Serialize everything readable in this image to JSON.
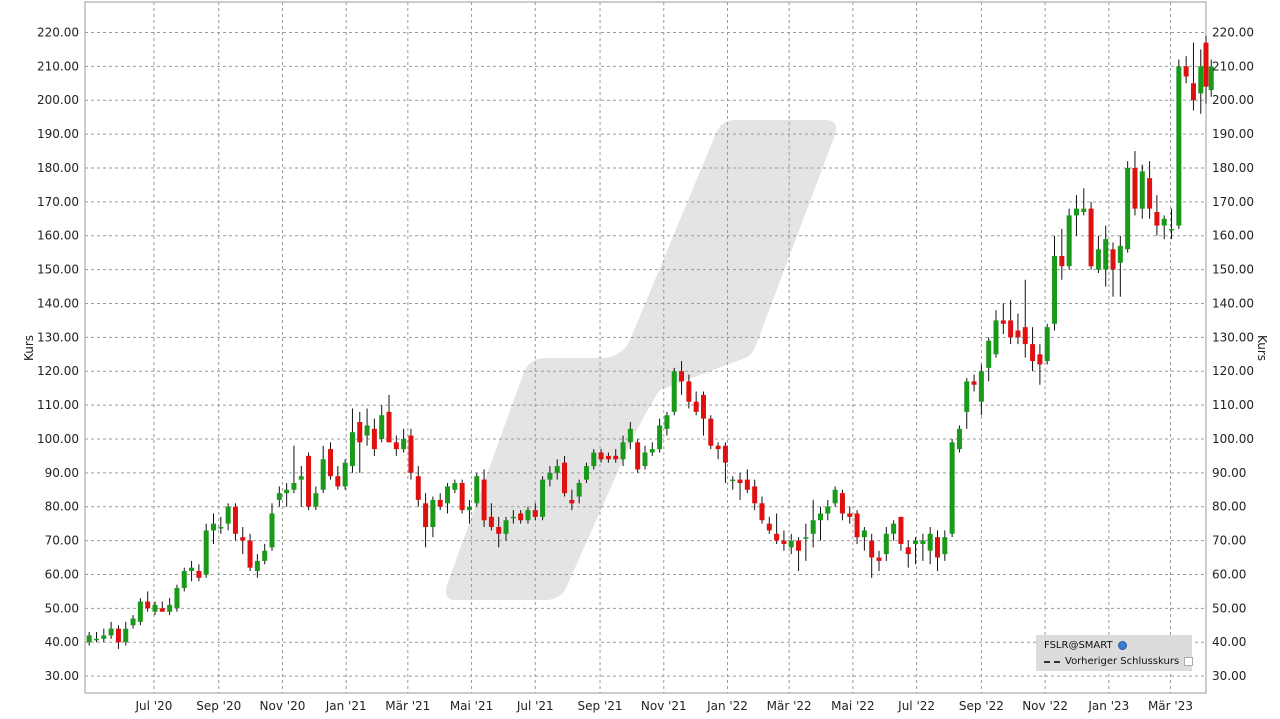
{
  "chart_data": {
    "type": "candlestick",
    "ylabel": "Kurs",
    "ylim": [
      25,
      229
    ],
    "y_ticks": [
      "30.00",
      "40.00",
      "50.00",
      "60.00",
      "70.00",
      "80.00",
      "90.00",
      "100.00",
      "110.00",
      "120.00",
      "130.00",
      "140.00",
      "150.00",
      "160.00",
      "170.00",
      "180.00",
      "190.00",
      "200.00",
      "210.00",
      "220.00"
    ],
    "x_ticks": [
      "Jul '20",
      "Sep '20",
      "Nov '20",
      "Jan '21",
      "Mär '21",
      "Mai '21",
      "Jul '21",
      "Sep '21",
      "Nov '21",
      "Jan '22",
      "Mär '22",
      "Mai '22",
      "Jul '22",
      "Sep '22",
      "Nov '22",
      "Jan '23",
      "Mär '23"
    ],
    "x_tick_dates": [
      "2020-07-01",
      "2020-09-01",
      "2020-11-01",
      "2021-01-01",
      "2021-03-01",
      "2021-05-01",
      "2021-07-01",
      "2021-09-01",
      "2021-11-01",
      "2022-01-01",
      "2022-03-01",
      "2022-05-01",
      "2022-07-01",
      "2022-09-01",
      "2022-11-01",
      "2023-01-01",
      "2023-03-01"
    ],
    "xlim": [
      "2020-04-26",
      "2023-04-04"
    ],
    "grid": true,
    "up_color": "#1a9a1a",
    "down_color": "#e01010",
    "legend_position": "bottom-right",
    "legend": [
      "FSLR@SMART",
      "Vorheriger Schlusskurs"
    ],
    "candles": [
      {
        "d": "2020-04-30",
        "o": 40,
        "h": 43,
        "l": 39,
        "c": 42
      },
      {
        "d": "2020-05-07",
        "o": 41,
        "h": 43,
        "l": 40,
        "c": 41
      },
      {
        "d": "2020-05-14",
        "o": 41,
        "h": 44,
        "l": 40,
        "c": 42
      },
      {
        "d": "2020-05-21",
        "o": 42,
        "h": 46,
        "l": 41,
        "c": 44
      },
      {
        "d": "2020-05-28",
        "o": 44,
        "h": 45,
        "l": 38,
        "c": 40
      },
      {
        "d": "2020-06-04",
        "o": 40,
        "h": 46,
        "l": 39,
        "c": 44
      },
      {
        "d": "2020-06-11",
        "o": 45,
        "h": 48,
        "l": 44,
        "c": 47
      },
      {
        "d": "2020-06-18",
        "o": 46,
        "h": 53,
        "l": 45,
        "c": 52
      },
      {
        "d": "2020-06-25",
        "o": 52,
        "h": 55,
        "l": 49,
        "c": 50
      },
      {
        "d": "2020-07-02",
        "o": 49,
        "h": 52,
        "l": 48,
        "c": 51
      },
      {
        "d": "2020-07-09",
        "o": 50,
        "h": 52,
        "l": 49,
        "c": 49
      },
      {
        "d": "2020-07-16",
        "o": 49,
        "h": 53,
        "l": 48,
        "c": 51
      },
      {
        "d": "2020-07-23",
        "o": 50,
        "h": 57,
        "l": 49,
        "c": 56
      },
      {
        "d": "2020-07-30",
        "o": 56,
        "h": 62,
        "l": 55,
        "c": 61
      },
      {
        "d": "2020-08-06",
        "o": 61,
        "h": 64,
        "l": 58,
        "c": 62
      },
      {
        "d": "2020-08-13",
        "o": 61,
        "h": 63,
        "l": 58,
        "c": 59
      },
      {
        "d": "2020-08-20",
        "o": 60,
        "h": 75,
        "l": 59,
        "c": 73
      },
      {
        "d": "2020-08-27",
        "o": 73,
        "h": 78,
        "l": 69,
        "c": 75
      },
      {
        "d": "2020-09-03",
        "o": 74,
        "h": 77,
        "l": 72,
        "c": 74
      },
      {
        "d": "2020-09-10",
        "o": 75,
        "h": 81,
        "l": 73,
        "c": 80
      },
      {
        "d": "2020-09-17",
        "o": 80,
        "h": 81,
        "l": 70,
        "c": 72
      },
      {
        "d": "2020-09-24",
        "o": 71,
        "h": 74,
        "l": 66,
        "c": 70
      },
      {
        "d": "2020-10-01",
        "o": 70,
        "h": 72,
        "l": 61,
        "c": 62
      },
      {
        "d": "2020-10-08",
        "o": 61,
        "h": 66,
        "l": 59,
        "c": 64
      },
      {
        "d": "2020-10-15",
        "o": 64,
        "h": 69,
        "l": 63,
        "c": 67
      },
      {
        "d": "2020-10-22",
        "o": 68,
        "h": 81,
        "l": 67,
        "c": 78
      },
      {
        "d": "2020-10-29",
        "o": 82,
        "h": 86,
        "l": 80,
        "c": 84
      },
      {
        "d": "2020-11-05",
        "o": 84,
        "h": 87,
        "l": 80,
        "c": 85
      },
      {
        "d": "2020-11-12",
        "o": 85,
        "h": 98,
        "l": 84,
        "c": 87
      },
      {
        "d": "2020-11-19",
        "o": 88,
        "h": 92,
        "l": 80,
        "c": 89
      },
      {
        "d": "2020-11-26",
        "o": 95,
        "h": 96,
        "l": 79,
        "c": 80
      },
      {
        "d": "2020-12-03",
        "o": 80,
        "h": 86,
        "l": 79,
        "c": 84
      },
      {
        "d": "2020-12-10",
        "o": 85,
        "h": 98,
        "l": 84,
        "c": 94
      },
      {
        "d": "2020-12-17",
        "o": 97,
        "h": 99,
        "l": 88,
        "c": 89
      },
      {
        "d": "2020-12-24",
        "o": 89,
        "h": 92,
        "l": 85,
        "c": 86
      },
      {
        "d": "2020-12-31",
        "o": 86,
        "h": 94,
        "l": 85,
        "c": 93
      },
      {
        "d": "2021-01-07",
        "o": 92,
        "h": 109,
        "l": 90,
        "c": 102
      },
      {
        "d": "2021-01-14",
        "o": 105,
        "h": 108,
        "l": 90,
        "c": 99
      },
      {
        "d": "2021-01-21",
        "o": 101,
        "h": 109,
        "l": 98,
        "c": 104
      },
      {
        "d": "2021-01-28",
        "o": 103,
        "h": 106,
        "l": 95,
        "c": 97
      },
      {
        "d": "2021-02-04",
        "o": 100,
        "h": 110,
        "l": 99,
        "c": 107
      },
      {
        "d": "2021-02-11",
        "o": 108,
        "h": 113,
        "l": 99,
        "c": 99
      },
      {
        "d": "2021-02-18",
        "o": 99,
        "h": 101,
        "l": 95,
        "c": 97
      },
      {
        "d": "2021-02-25",
        "o": 97,
        "h": 103,
        "l": 96,
        "c": 100
      },
      {
        "d": "2021-03-04",
        "o": 101,
        "h": 103,
        "l": 88,
        "c": 90
      },
      {
        "d": "2021-03-11",
        "o": 89,
        "h": 92,
        "l": 80,
        "c": 82
      },
      {
        "d": "2021-03-18",
        "o": 81,
        "h": 84,
        "l": 68,
        "c": 74
      },
      {
        "d": "2021-03-25",
        "o": 74,
        "h": 83,
        "l": 71,
        "c": 82
      },
      {
        "d": "2021-04-01",
        "o": 82,
        "h": 84,
        "l": 79,
        "c": 80
      },
      {
        "d": "2021-04-08",
        "o": 81,
        "h": 87,
        "l": 78,
        "c": 86
      },
      {
        "d": "2021-04-15",
        "o": 85,
        "h": 88,
        "l": 84,
        "c": 87
      },
      {
        "d": "2021-04-22",
        "o": 87,
        "h": 88,
        "l": 78,
        "c": 79
      },
      {
        "d": "2021-04-29",
        "o": 79,
        "h": 82,
        "l": 75,
        "c": 80
      },
      {
        "d": "2021-05-06",
        "o": 81,
        "h": 90,
        "l": 80,
        "c": 89
      },
      {
        "d": "2021-05-13",
        "o": 88,
        "h": 91,
        "l": 74,
        "c": 76
      },
      {
        "d": "2021-05-20",
        "o": 77,
        "h": 81,
        "l": 73,
        "c": 74
      },
      {
        "d": "2021-05-27",
        "o": 74,
        "h": 77,
        "l": 68,
        "c": 72
      },
      {
        "d": "2021-06-03",
        "o": 72,
        "h": 77,
        "l": 70,
        "c": 76
      },
      {
        "d": "2021-06-10",
        "o": 77,
        "h": 79,
        "l": 75,
        "c": 77
      },
      {
        "d": "2021-06-17",
        "o": 78,
        "h": 79,
        "l": 75,
        "c": 76
      },
      {
        "d": "2021-06-24",
        "o": 76,
        "h": 80,
        "l": 75,
        "c": 79
      },
      {
        "d": "2021-07-01",
        "o": 79,
        "h": 81,
        "l": 76,
        "c": 77
      },
      {
        "d": "2021-07-08",
        "o": 77,
        "h": 89,
        "l": 76,
        "c": 88
      },
      {
        "d": "2021-07-15",
        "o": 88,
        "h": 92,
        "l": 86,
        "c": 90
      },
      {
        "d": "2021-07-22",
        "o": 90,
        "h": 94,
        "l": 88,
        "c": 92
      },
      {
        "d": "2021-07-29",
        "o": 93,
        "h": 95,
        "l": 83,
        "c": 84
      },
      {
        "d": "2021-08-05",
        "o": 82,
        "h": 85,
        "l": 79,
        "c": 81
      },
      {
        "d": "2021-08-12",
        "o": 83,
        "h": 88,
        "l": 81,
        "c": 87
      },
      {
        "d": "2021-08-19",
        "o": 88,
        "h": 93,
        "l": 87,
        "c": 92
      },
      {
        "d": "2021-08-26",
        "o": 92,
        "h": 97,
        "l": 91,
        "c": 96
      },
      {
        "d": "2021-09-02",
        "o": 96,
        "h": 97,
        "l": 93,
        "c": 94
      },
      {
        "d": "2021-09-09",
        "o": 95,
        "h": 96,
        "l": 93,
        "c": 94
      },
      {
        "d": "2021-09-16",
        "o": 95,
        "h": 97,
        "l": 93,
        "c": 94
      },
      {
        "d": "2021-09-23",
        "o": 94,
        "h": 101,
        "l": 92,
        "c": 99
      },
      {
        "d": "2021-09-30",
        "o": 99,
        "h": 105,
        "l": 97,
        "c": 103
      },
      {
        "d": "2021-10-07",
        "o": 99,
        "h": 100,
        "l": 90,
        "c": 91
      },
      {
        "d": "2021-10-14",
        "o": 92,
        "h": 98,
        "l": 91,
        "c": 96
      },
      {
        "d": "2021-10-21",
        "o": 96,
        "h": 99,
        "l": 95,
        "c": 97
      },
      {
        "d": "2021-10-28",
        "o": 97,
        "h": 106,
        "l": 96,
        "c": 104
      },
      {
        "d": "2021-11-04",
        "o": 103,
        "h": 108,
        "l": 101,
        "c": 107
      },
      {
        "d": "2021-11-11",
        "o": 108,
        "h": 121,
        "l": 107,
        "c": 120
      },
      {
        "d": "2021-11-18",
        "o": 120,
        "h": 123,
        "l": 113,
        "c": 117
      },
      {
        "d": "2021-11-25",
        "o": 117,
        "h": 119,
        "l": 109,
        "c": 111
      },
      {
        "d": "2021-12-02",
        "o": 111,
        "h": 114,
        "l": 107,
        "c": 108
      },
      {
        "d": "2021-12-09",
        "o": 113,
        "h": 114,
        "l": 101,
        "c": 106
      },
      {
        "d": "2021-12-16",
        "o": 106,
        "h": 107,
        "l": 97,
        "c": 98
      },
      {
        "d": "2021-12-23",
        "o": 98,
        "h": 99,
        "l": 94,
        "c": 97
      },
      {
        "d": "2021-12-30",
        "o": 98,
        "h": 99,
        "l": 87,
        "c": 93
      },
      {
        "d": "2022-01-06",
        "o": 88,
        "h": 89,
        "l": 85,
        "c": 88
      },
      {
        "d": "2022-01-13",
        "o": 88,
        "h": 90,
        "l": 82,
        "c": 87
      },
      {
        "d": "2022-01-20",
        "o": 88,
        "h": 91,
        "l": 84,
        "c": 85
      },
      {
        "d": "2022-01-27",
        "o": 86,
        "h": 88,
        "l": 79,
        "c": 81
      },
      {
        "d": "2022-02-03",
        "o": 81,
        "h": 83,
        "l": 75,
        "c": 76
      },
      {
        "d": "2022-02-10",
        "o": 75,
        "h": 77,
        "l": 72,
        "c": 73
      },
      {
        "d": "2022-02-17",
        "o": 72,
        "h": 78,
        "l": 69,
        "c": 70
      },
      {
        "d": "2022-02-24",
        "o": 70,
        "h": 73,
        "l": 67,
        "c": 69
      },
      {
        "d": "2022-03-03",
        "o": 68,
        "h": 72,
        "l": 66,
        "c": 70
      },
      {
        "d": "2022-03-10",
        "o": 70,
        "h": 71,
        "l": 61,
        "c": 67
      },
      {
        "d": "2022-03-17",
        "o": 71,
        "h": 75,
        "l": 64,
        "c": 71
      },
      {
        "d": "2022-03-24",
        "o": 72,
        "h": 82,
        "l": 68,
        "c": 76
      },
      {
        "d": "2022-03-31",
        "o": 76,
        "h": 80,
        "l": 70,
        "c": 78
      },
      {
        "d": "2022-04-07",
        "o": 78,
        "h": 82,
        "l": 76,
        "c": 80
      },
      {
        "d": "2022-04-14",
        "o": 81,
        "h": 86,
        "l": 80,
        "c": 85
      },
      {
        "d": "2022-04-21",
        "o": 84,
        "h": 85,
        "l": 76,
        "c": 78
      },
      {
        "d": "2022-04-28",
        "o": 78,
        "h": 80,
        "l": 75,
        "c": 77
      },
      {
        "d": "2022-05-05",
        "o": 78,
        "h": 79,
        "l": 69,
        "c": 71
      },
      {
        "d": "2022-05-12",
        "o": 71,
        "h": 74,
        "l": 67,
        "c": 73
      },
      {
        "d": "2022-05-19",
        "o": 70,
        "h": 72,
        "l": 59,
        "c": 65
      },
      {
        "d": "2022-05-26",
        "o": 65,
        "h": 67,
        "l": 61,
        "c": 64
      },
      {
        "d": "2022-06-02",
        "o": 66,
        "h": 74,
        "l": 64,
        "c": 72
      },
      {
        "d": "2022-06-09",
        "o": 72,
        "h": 76,
        "l": 70,
        "c": 75
      },
      {
        "d": "2022-06-16",
        "o": 77,
        "h": 77,
        "l": 67,
        "c": 69
      },
      {
        "d": "2022-06-23",
        "o": 68,
        "h": 70,
        "l": 62,
        "c": 66
      },
      {
        "d": "2022-06-30",
        "o": 69,
        "h": 71,
        "l": 63,
        "c": 70
      },
      {
        "d": "2022-07-07",
        "o": 69,
        "h": 72,
        "l": 64,
        "c": 70
      },
      {
        "d": "2022-07-14",
        "o": 67,
        "h": 74,
        "l": 63,
        "c": 72
      },
      {
        "d": "2022-07-21",
        "o": 71,
        "h": 73,
        "l": 61,
        "c": 65
      },
      {
        "d": "2022-07-28",
        "o": 66,
        "h": 73,
        "l": 64,
        "c": 71
      },
      {
        "d": "2022-08-04",
        "o": 72,
        "h": 100,
        "l": 71,
        "c": 99
      },
      {
        "d": "2022-08-11",
        "o": 97,
        "h": 104,
        "l": 96,
        "c": 103
      },
      {
        "d": "2022-08-18",
        "o": 108,
        "h": 118,
        "l": 103,
        "c": 117
      },
      {
        "d": "2022-08-25",
        "o": 117,
        "h": 119,
        "l": 114,
        "c": 116
      },
      {
        "d": "2022-09-01",
        "o": 111,
        "h": 122,
        "l": 107,
        "c": 120
      },
      {
        "d": "2022-09-08",
        "o": 121,
        "h": 130,
        "l": 117,
        "c": 129
      },
      {
        "d": "2022-09-15",
        "o": 125,
        "h": 138,
        "l": 124,
        "c": 135
      },
      {
        "d": "2022-09-22",
        "o": 135,
        "h": 140,
        "l": 131,
        "c": 134
      },
      {
        "d": "2022-09-29",
        "o": 135,
        "h": 141,
        "l": 128,
        "c": 130
      },
      {
        "d": "2022-10-06",
        "o": 132,
        "h": 137,
        "l": 128,
        "c": 130
      },
      {
        "d": "2022-10-13",
        "o": 133,
        "h": 147,
        "l": 124,
        "c": 128
      },
      {
        "d": "2022-10-20",
        "o": 128,
        "h": 133,
        "l": 120,
        "c": 123
      },
      {
        "d": "2022-10-27",
        "o": 125,
        "h": 128,
        "l": 116,
        "c": 122
      },
      {
        "d": "2022-11-03",
        "o": 123,
        "h": 134,
        "l": 122,
        "c": 133
      },
      {
        "d": "2022-11-10",
        "o": 134,
        "h": 160,
        "l": 132,
        "c": 154
      },
      {
        "d": "2022-11-17",
        "o": 154,
        "h": 162,
        "l": 147,
        "c": 151
      },
      {
        "d": "2022-11-24",
        "o": 151,
        "h": 168,
        "l": 150,
        "c": 166
      },
      {
        "d": "2022-12-01",
        "o": 166,
        "h": 172,
        "l": 160,
        "c": 168
      },
      {
        "d": "2022-12-08",
        "o": 167,
        "h": 174,
        "l": 166,
        "c": 168
      },
      {
        "d": "2022-12-15",
        "o": 168,
        "h": 170,
        "l": 150,
        "c": 151
      },
      {
        "d": "2022-12-22",
        "o": 150,
        "h": 160,
        "l": 149,
        "c": 156
      },
      {
        "d": "2022-12-29",
        "o": 150,
        "h": 163,
        "l": 145,
        "c": 159
      },
      {
        "d": "2023-01-05",
        "o": 156,
        "h": 158,
        "l": 142,
        "c": 150
      },
      {
        "d": "2023-01-12",
        "o": 152,
        "h": 160,
        "l": 142,
        "c": 157
      },
      {
        "d": "2023-01-19",
        "o": 156,
        "h": 182,
        "l": 155,
        "c": 180
      },
      {
        "d": "2023-01-26",
        "o": 180,
        "h": 185,
        "l": 166,
        "c": 168
      },
      {
        "d": "2023-02-02",
        "o": 168,
        "h": 181,
        "l": 165,
        "c": 179
      },
      {
        "d": "2023-02-09",
        "o": 177,
        "h": 182,
        "l": 165,
        "c": 168
      },
      {
        "d": "2023-02-16",
        "o": 167,
        "h": 172,
        "l": 160,
        "c": 163
      },
      {
        "d": "2023-02-23",
        "o": 163,
        "h": 166,
        "l": 159,
        "c": 165
      },
      {
        "d": "2023-03-02",
        "o": 162,
        "h": 168,
        "l": 159,
        "c": 162
      },
      {
        "d": "2023-03-09",
        "o": 163,
        "h": 212,
        "l": 162,
        "c": 210
      },
      {
        "d": "2023-03-16",
        "o": 210,
        "h": 213,
        "l": 205,
        "c": 207
      },
      {
        "d": "2023-03-23",
        "o": 205,
        "h": 217,
        "l": 197,
        "c": 200
      },
      {
        "d": "2023-03-30",
        "o": 202,
        "h": 215,
        "l": 196,
        "c": 210
      },
      {
        "d": "2023-04-04",
        "o": 217,
        "h": 219,
        "l": 199,
        "c": 204
      },
      {
        "d": "2023-04-09",
        "o": 203,
        "h": 212,
        "l": 201,
        "c": 210
      }
    ]
  },
  "legend_box": {
    "symbol": "FSLR@SMART",
    "prev_close_label": "Vorheriger Schlusskurs"
  }
}
